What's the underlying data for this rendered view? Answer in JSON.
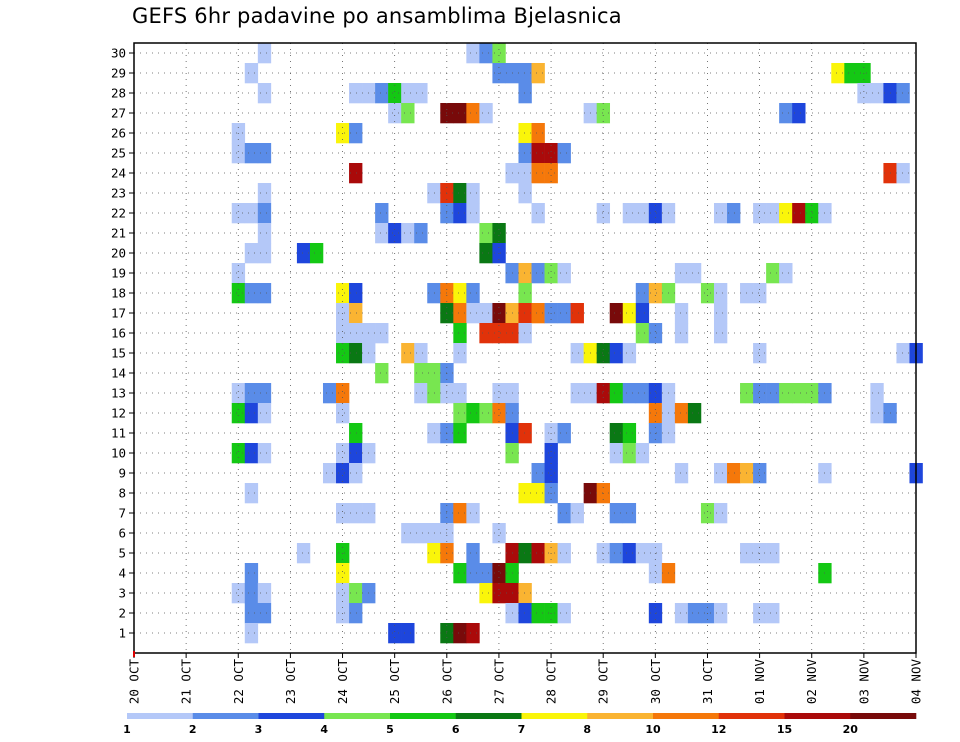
{
  "chart_data": {
    "type": "heatmap",
    "title": "GEFS 6hr padavine po ansamblima Bjelasnica",
    "x_tick_labels": [
      "20 OCT",
      "21 OCT",
      "22 OCT",
      "23 OCT",
      "24 OCT",
      "25 OCT",
      "26 OCT",
      "27 OCT",
      "28 OCT",
      "29 OCT",
      "30 OCT",
      "31 OCT",
      "01 NOV",
      "02 NOV",
      "03 NOV",
      "04 NOV"
    ],
    "y_tick_labels": [
      "1",
      "2",
      "3",
      "4",
      "5",
      "6",
      "7",
      "8",
      "9",
      "10",
      "11",
      "12",
      "13",
      "14",
      "15",
      "16",
      "17",
      "18",
      "19",
      "20",
      "21",
      "22",
      "23",
      "24",
      "25",
      "26",
      "27",
      "28",
      "29",
      "30"
    ],
    "y_members": [
      0,
      30
    ],
    "steps_per_day": 4,
    "total_steps": 60,
    "grid": true,
    "colorbar": {
      "placement": "bottom",
      "labels": [
        "1",
        "2",
        "3",
        "4",
        "5",
        "6",
        "7",
        "8",
        "10",
        "12",
        "15",
        "20"
      ],
      "colors": [
        "#b4c8f8",
        "#5a8ce8",
        "#1e46dc",
        "#78e650",
        "#14c814",
        "#0a7814",
        "#faf50a",
        "#fab432",
        "#f5780a",
        "#e1320a",
        "#aa0a0a",
        "#780a0a"
      ]
    },
    "cells": [
      [
        30,
        10,
        0
      ],
      [
        30,
        26,
        0
      ],
      [
        30,
        27,
        1
      ],
      [
        30,
        28,
        3
      ],
      [
        29,
        9,
        0
      ],
      [
        29,
        28,
        1
      ],
      [
        29,
        29,
        1
      ],
      [
        29,
        30,
        1
      ],
      [
        29,
        31,
        7
      ],
      [
        29,
        54,
        6
      ],
      [
        29,
        55,
        4
      ],
      [
        29,
        56,
        4
      ],
      [
        28,
        10,
        0
      ],
      [
        28,
        17,
        0
      ],
      [
        28,
        18,
        0
      ],
      [
        28,
        19,
        1
      ],
      [
        28,
        20,
        4
      ],
      [
        28,
        21,
        0
      ],
      [
        28,
        22,
        0
      ],
      [
        28,
        30,
        1
      ],
      [
        28,
        56,
        0
      ],
      [
        28,
        57,
        0
      ],
      [
        28,
        58,
        2
      ],
      [
        28,
        59,
        1
      ],
      [
        27,
        20,
        0
      ],
      [
        27,
        21,
        3
      ],
      [
        27,
        24,
        11
      ],
      [
        27,
        25,
        11
      ],
      [
        27,
        26,
        8
      ],
      [
        27,
        27,
        0
      ],
      [
        27,
        35,
        0
      ],
      [
        27,
        36,
        3
      ],
      [
        27,
        50,
        1
      ],
      [
        27,
        51,
        2
      ],
      [
        26,
        8,
        0
      ],
      [
        26,
        16,
        6
      ],
      [
        26,
        17,
        1
      ],
      [
        26,
        30,
        6
      ],
      [
        26,
        31,
        8
      ],
      [
        25,
        8,
        0
      ],
      [
        25,
        9,
        1
      ],
      [
        25,
        10,
        1
      ],
      [
        25,
        30,
        1
      ],
      [
        25,
        31,
        10
      ],
      [
        25,
        32,
        10
      ],
      [
        25,
        33,
        1
      ],
      [
        24,
        17,
        10
      ],
      [
        24,
        29,
        0
      ],
      [
        24,
        30,
        0
      ],
      [
        24,
        31,
        8
      ],
      [
        24,
        32,
        8
      ],
      [
        24,
        58,
        9
      ],
      [
        24,
        59,
        0
      ],
      [
        23,
        10,
        0
      ],
      [
        23,
        23,
        0
      ],
      [
        23,
        24,
        9
      ],
      [
        23,
        25,
        5
      ],
      [
        23,
        26,
        0
      ],
      [
        23,
        30,
        0
      ],
      [
        22,
        8,
        0
      ],
      [
        22,
        9,
        0
      ],
      [
        22,
        10,
        1
      ],
      [
        22,
        19,
        1
      ],
      [
        22,
        24,
        1
      ],
      [
        22,
        25,
        2
      ],
      [
        22,
        26,
        0
      ],
      [
        22,
        31,
        0
      ],
      [
        22,
        36,
        0
      ],
      [
        22,
        38,
        0
      ],
      [
        22,
        39,
        0
      ],
      [
        22,
        40,
        2
      ],
      [
        22,
        41,
        0
      ],
      [
        22,
        45,
        0
      ],
      [
        22,
        46,
        1
      ],
      [
        22,
        48,
        0
      ],
      [
        22,
        49,
        0
      ],
      [
        22,
        50,
        6
      ],
      [
        22,
        51,
        10
      ],
      [
        22,
        52,
        4
      ],
      [
        22,
        53,
        0
      ],
      [
        21,
        10,
        0
      ],
      [
        21,
        19,
        0
      ],
      [
        21,
        20,
        2
      ],
      [
        21,
        21,
        0
      ],
      [
        21,
        22,
        1
      ],
      [
        21,
        27,
        3
      ],
      [
        21,
        28,
        5
      ],
      [
        20,
        9,
        0
      ],
      [
        20,
        10,
        0
      ],
      [
        20,
        13,
        2
      ],
      [
        20,
        14,
        4
      ],
      [
        20,
        27,
        5
      ],
      [
        20,
        28,
        2
      ],
      [
        19,
        8,
        0
      ],
      [
        19,
        29,
        1
      ],
      [
        19,
        30,
        7
      ],
      [
        19,
        31,
        1
      ],
      [
        19,
        32,
        3
      ],
      [
        19,
        33,
        0
      ],
      [
        19,
        42,
        0
      ],
      [
        19,
        43,
        0
      ],
      [
        19,
        49,
        3
      ],
      [
        19,
        50,
        0
      ],
      [
        18,
        8,
        4
      ],
      [
        18,
        9,
        1
      ],
      [
        18,
        10,
        1
      ],
      [
        18,
        16,
        6
      ],
      [
        18,
        17,
        2
      ],
      [
        18,
        23,
        1
      ],
      [
        18,
        24,
        8
      ],
      [
        18,
        25,
        6
      ],
      [
        18,
        26,
        1
      ],
      [
        18,
        30,
        3
      ],
      [
        18,
        39,
        1
      ],
      [
        18,
        40,
        7
      ],
      [
        18,
        41,
        3
      ],
      [
        18,
        44,
        3
      ],
      [
        18,
        45,
        0
      ],
      [
        18,
        47,
        0
      ],
      [
        18,
        48,
        0
      ],
      [
        17,
        16,
        0
      ],
      [
        17,
        17,
        7
      ],
      [
        17,
        24,
        5
      ],
      [
        17,
        25,
        8
      ],
      [
        17,
        26,
        0
      ],
      [
        17,
        27,
        0
      ],
      [
        17,
        28,
        11
      ],
      [
        17,
        29,
        7
      ],
      [
        17,
        30,
        9
      ],
      [
        17,
        31,
        8
      ],
      [
        17,
        32,
        1
      ],
      [
        17,
        33,
        1
      ],
      [
        17,
        34,
        9
      ],
      [
        17,
        37,
        11
      ],
      [
        17,
        38,
        6
      ],
      [
        17,
        39,
        2
      ],
      [
        17,
        42,
        0
      ],
      [
        17,
        45,
        0
      ],
      [
        16,
        16,
        0
      ],
      [
        16,
        17,
        0
      ],
      [
        16,
        18,
        0
      ],
      [
        16,
        19,
        0
      ],
      [
        16,
        25,
        4
      ],
      [
        16,
        27,
        9
      ],
      [
        16,
        28,
        9
      ],
      [
        16,
        29,
        9
      ],
      [
        16,
        30,
        0
      ],
      [
        16,
        39,
        3
      ],
      [
        16,
        40,
        1
      ],
      [
        16,
        42,
        0
      ],
      [
        16,
        45,
        0
      ],
      [
        15,
        16,
        4
      ],
      [
        15,
        17,
        5
      ],
      [
        15,
        18,
        0
      ],
      [
        15,
        21,
        7
      ],
      [
        15,
        22,
        0
      ],
      [
        15,
        25,
        0
      ],
      [
        15,
        34,
        0
      ],
      [
        15,
        35,
        6
      ],
      [
        15,
        36,
        5
      ],
      [
        15,
        37,
        2
      ],
      [
        15,
        38,
        0
      ],
      [
        15,
        48,
        0
      ],
      [
        15,
        59,
        0
      ],
      [
        15,
        60,
        2
      ],
      [
        14,
        19,
        3
      ],
      [
        14,
        22,
        3
      ],
      [
        14,
        23,
        3
      ],
      [
        14,
        24,
        1
      ],
      [
        13,
        8,
        0
      ],
      [
        13,
        9,
        1
      ],
      [
        13,
        10,
        1
      ],
      [
        13,
        15,
        1
      ],
      [
        13,
        16,
        8
      ],
      [
        13,
        22,
        0
      ],
      [
        13,
        23,
        3
      ],
      [
        13,
        24,
        0
      ],
      [
        13,
        25,
        0
      ],
      [
        13,
        28,
        0
      ],
      [
        13,
        29,
        0
      ],
      [
        13,
        34,
        0
      ],
      [
        13,
        35,
        0
      ],
      [
        13,
        36,
        10
      ],
      [
        13,
        37,
        4
      ],
      [
        13,
        38,
        1
      ],
      [
        13,
        39,
        1
      ],
      [
        13,
        40,
        2
      ],
      [
        13,
        41,
        0
      ],
      [
        13,
        47,
        3
      ],
      [
        13,
        48,
        1
      ],
      [
        13,
        49,
        1
      ],
      [
        13,
        50,
        3
      ],
      [
        13,
        51,
        3
      ],
      [
        13,
        52,
        3
      ],
      [
        13,
        53,
        1
      ],
      [
        13,
        57,
        0
      ],
      [
        12,
        8,
        4
      ],
      [
        12,
        9,
        2
      ],
      [
        12,
        10,
        0
      ],
      [
        12,
        16,
        0
      ],
      [
        12,
        25,
        3
      ],
      [
        12,
        26,
        4
      ],
      [
        12,
        27,
        3
      ],
      [
        12,
        28,
        8
      ],
      [
        12,
        29,
        1
      ],
      [
        12,
        40,
        8
      ],
      [
        12,
        41,
        0
      ],
      [
        12,
        42,
        8
      ],
      [
        12,
        43,
        5
      ],
      [
        12,
        57,
        0
      ],
      [
        12,
        58,
        1
      ],
      [
        11,
        17,
        4
      ],
      [
        11,
        23,
        0
      ],
      [
        11,
        24,
        1
      ],
      [
        11,
        25,
        4
      ],
      [
        11,
        29,
        2
      ],
      [
        11,
        30,
        9
      ],
      [
        11,
        32,
        0
      ],
      [
        11,
        33,
        1
      ],
      [
        11,
        37,
        5
      ],
      [
        11,
        38,
        4
      ],
      [
        11,
        40,
        1
      ],
      [
        11,
        41,
        0
      ],
      [
        10,
        8,
        4
      ],
      [
        10,
        9,
        2
      ],
      [
        10,
        10,
        0
      ],
      [
        10,
        16,
        0
      ],
      [
        10,
        17,
        2
      ],
      [
        10,
        18,
        0
      ],
      [
        10,
        29,
        3
      ],
      [
        10,
        32,
        2
      ],
      [
        10,
        37,
        0
      ],
      [
        10,
        38,
        3
      ],
      [
        10,
        39,
        0
      ],
      [
        9,
        15,
        0
      ],
      [
        9,
        16,
        2
      ],
      [
        9,
        17,
        0
      ],
      [
        9,
        31,
        1
      ],
      [
        9,
        32,
        2
      ],
      [
        9,
        42,
        0
      ],
      [
        9,
        45,
        0
      ],
      [
        9,
        46,
        8
      ],
      [
        9,
        47,
        7
      ],
      [
        9,
        48,
        1
      ],
      [
        9,
        53,
        0
      ],
      [
        9,
        60,
        2
      ],
      [
        8,
        9,
        0
      ],
      [
        8,
        30,
        6
      ],
      [
        8,
        31,
        6
      ],
      [
        8,
        32,
        1
      ],
      [
        8,
        35,
        11
      ],
      [
        8,
        36,
        8
      ],
      [
        7,
        16,
        0
      ],
      [
        7,
        17,
        0
      ],
      [
        7,
        18,
        0
      ],
      [
        7,
        24,
        1
      ],
      [
        7,
        25,
        8
      ],
      [
        7,
        26,
        0
      ],
      [
        7,
        33,
        1
      ],
      [
        7,
        34,
        0
      ],
      [
        7,
        37,
        1
      ],
      [
        7,
        38,
        1
      ],
      [
        7,
        44,
        3
      ],
      [
        7,
        45,
        0
      ],
      [
        6,
        21,
        0
      ],
      [
        6,
        22,
        0
      ],
      [
        6,
        23,
        0
      ],
      [
        6,
        24,
        0
      ],
      [
        6,
        28,
        0
      ],
      [
        5,
        13,
        0
      ],
      [
        5,
        16,
        4
      ],
      [
        5,
        23,
        6
      ],
      [
        5,
        24,
        8
      ],
      [
        5,
        26,
        1
      ],
      [
        5,
        29,
        10
      ],
      [
        5,
        30,
        5
      ],
      [
        5,
        31,
        10
      ],
      [
        5,
        32,
        7
      ],
      [
        5,
        33,
        0
      ],
      [
        5,
        36,
        0
      ],
      [
        5,
        37,
        1
      ],
      [
        5,
        38,
        2
      ],
      [
        5,
        39,
        0
      ],
      [
        5,
        40,
        0
      ],
      [
        5,
        47,
        0
      ],
      [
        5,
        48,
        0
      ],
      [
        5,
        49,
        0
      ],
      [
        4,
        9,
        1
      ],
      [
        4,
        16,
        6
      ],
      [
        4,
        25,
        4
      ],
      [
        4,
        26,
        1
      ],
      [
        4,
        27,
        1
      ],
      [
        4,
        28,
        11
      ],
      [
        4,
        29,
        4
      ],
      [
        4,
        40,
        0
      ],
      [
        4,
        41,
        8
      ],
      [
        4,
        53,
        4
      ],
      [
        3,
        8,
        0
      ],
      [
        3,
        9,
        1
      ],
      [
        3,
        10,
        0
      ],
      [
        3,
        16,
        0
      ],
      [
        3,
        17,
        3
      ],
      [
        3,
        18,
        1
      ],
      [
        3,
        27,
        6
      ],
      [
        3,
        28,
        10
      ],
      [
        3,
        29,
        10
      ],
      [
        3,
        30,
        7
      ],
      [
        2,
        9,
        1
      ],
      [
        2,
        10,
        1
      ],
      [
        2,
        16,
        0
      ],
      [
        2,
        17,
        1
      ],
      [
        2,
        29,
        0
      ],
      [
        2,
        30,
        2
      ],
      [
        2,
        31,
        4
      ],
      [
        2,
        32,
        4
      ],
      [
        2,
        33,
        0
      ],
      [
        2,
        40,
        2
      ],
      [
        2,
        42,
        0
      ],
      [
        2,
        43,
        1
      ],
      [
        2,
        44,
        1
      ],
      [
        2,
        45,
        0
      ],
      [
        2,
        48,
        0
      ],
      [
        2,
        49,
        0
      ],
      [
        1,
        9,
        0
      ],
      [
        1,
        20,
        2
      ],
      [
        1,
        21,
        2
      ],
      [
        1,
        24,
        5
      ],
      [
        1,
        25,
        11
      ],
      [
        1,
        26,
        10
      ]
    ]
  }
}
